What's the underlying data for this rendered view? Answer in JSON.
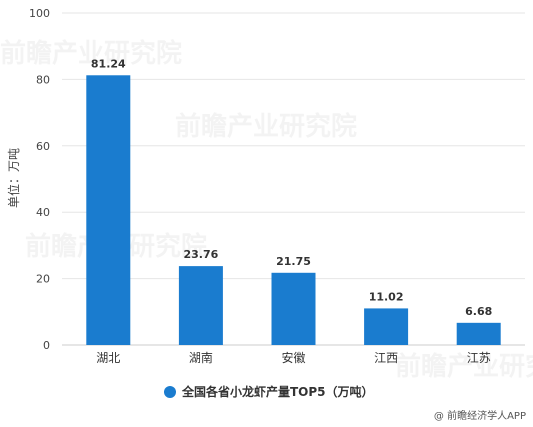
{
  "chart_data": {
    "type": "bar",
    "categories": [
      "湖北",
      "湖南",
      "安徽",
      "江西",
      "江苏"
    ],
    "series": [
      {
        "name": "全国各省小龙虾产量TOP5（万吨）",
        "values": [
          81.24,
          23.76,
          21.75,
          11.02,
          6.68
        ],
        "color": "#1a7ccf"
      }
    ],
    "data_labels": [
      "81.24",
      "23.76",
      "21.75",
      "11.02",
      "6.68"
    ],
    "ylabel": "单位：万吨",
    "ylim": [
      0,
      100
    ],
    "yticks": [
      0,
      20,
      40,
      60,
      80,
      100
    ],
    "grid": true,
    "legend_position": "bottom"
  },
  "watermark": {
    "text": "@ 前瞻经济学人APP",
    "logo_text": "前瞻产业研究院"
  }
}
